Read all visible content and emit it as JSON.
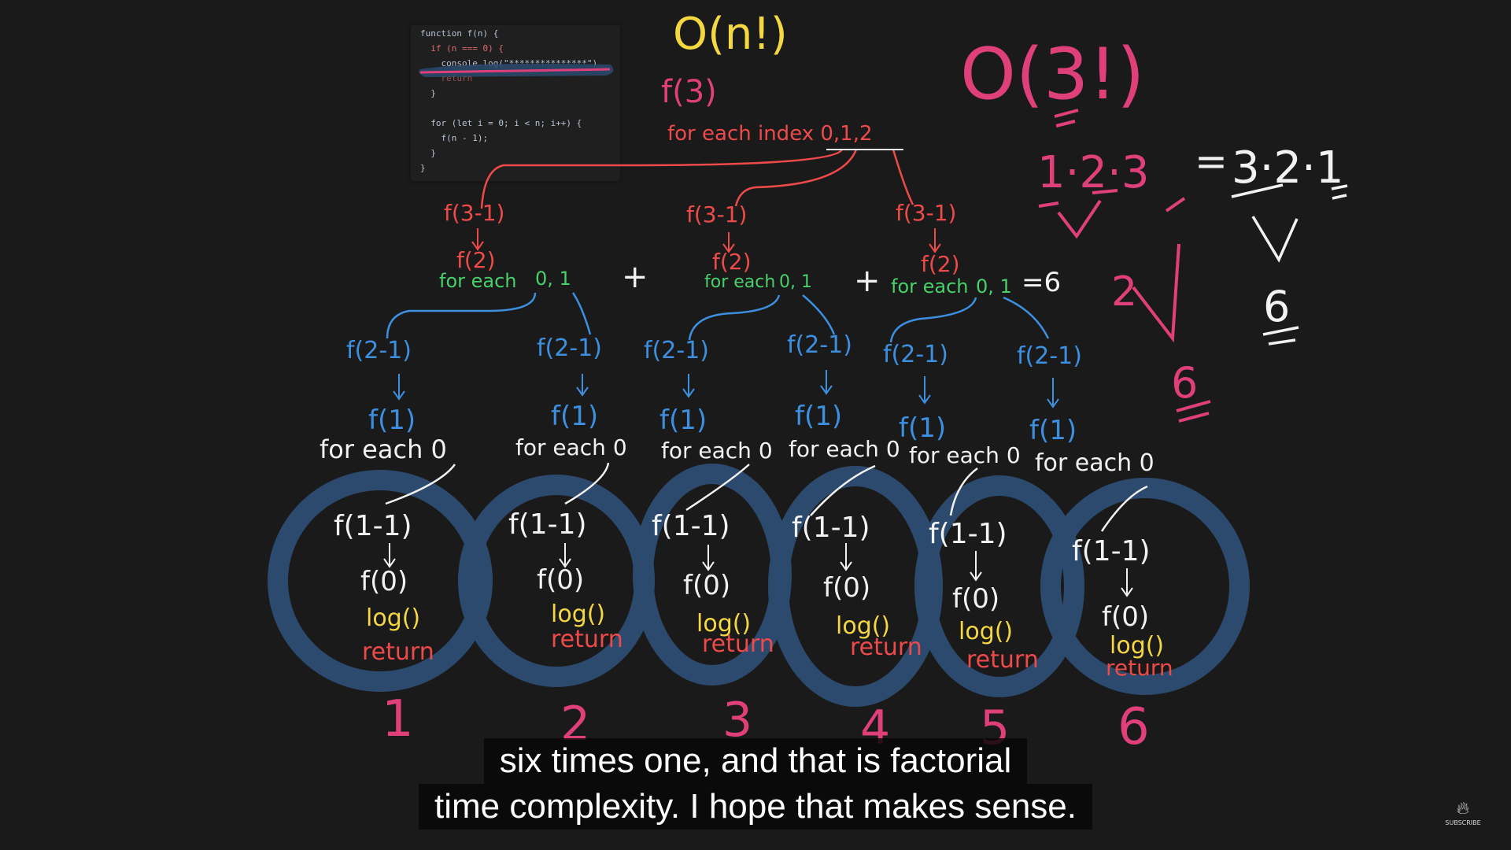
{
  "code": {
    "lines": [
      "function f(n) {",
      "  if (n === 0) {",
      "    console.log(\"***************\")",
      "    return",
      "  }",
      "",
      "  for (let i = 0; i < n; i++) {",
      "    f(n - 1);",
      "  }",
      "}"
    ]
  },
  "notes": {
    "complexity": "O(n!)",
    "root_call": "f(3)",
    "root_loop": "for each index 0,1,2",
    "big_o_3": "O(3!)",
    "product_left": "1·2·3",
    "equals": "=",
    "product_right": "3·2·1",
    "side_two": "2",
    "side_six": "6",
    "result_six": "6"
  },
  "level1": {
    "call": "f(3-1)",
    "sub": "f(2)",
    "loop": "for each",
    "indices": "0, 1",
    "plus": "+",
    "equals_six": "=6"
  },
  "level2": {
    "call": "f(2-1)",
    "sub": "f(1)",
    "loop": "for each 0"
  },
  "level3": {
    "call": "f(1-1)",
    "sub": "f(0)",
    "log": "log()",
    "ret": "return"
  },
  "counts": [
    "1",
    "2",
    "3",
    "4",
    "5",
    "6"
  ],
  "captions": {
    "line1": "six times one, and that is factorial",
    "line2": "time complexity. I hope that makes sense."
  },
  "badge": {
    "label": "SUBSCRIBE",
    "icon": "fire-icon"
  },
  "colors": {
    "background": "#1a1a1a",
    "yellow": "#f5d742",
    "pink": "#e0407a",
    "red": "#ef4a4a",
    "green": "#46d16a",
    "blue": "#3d8fe0",
    "white": "#f2f2f2",
    "circle": "#2c4a6e"
  }
}
